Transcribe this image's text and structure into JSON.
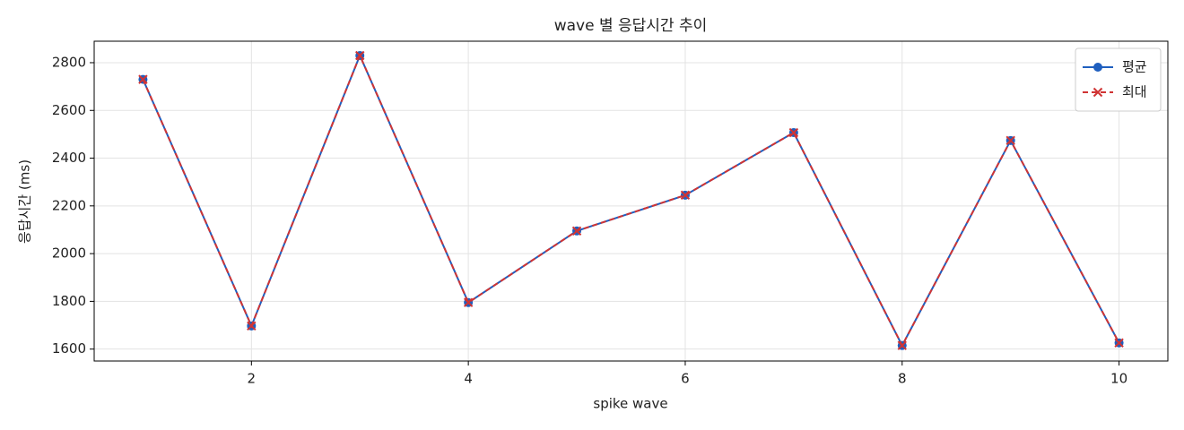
{
  "chart_data": {
    "type": "line",
    "title": "wave 별 응답시간 추이",
    "xlabel": "spike wave",
    "ylabel": "응답시간 (ms)",
    "x": [
      1,
      2,
      3,
      4,
      5,
      6,
      7,
      8,
      9,
      10
    ],
    "series": [
      {
        "name": "평균",
        "color": "#1f5fbf",
        "marker": "o",
        "linestyle": "solid",
        "values": [
          2730,
          1697,
          2830,
          1795,
          2095,
          2245,
          2507,
          1615,
          2474,
          1626
        ]
      },
      {
        "name": "최대",
        "color": "#d03434",
        "marker": "x",
        "linestyle": "dashed",
        "values": [
          2730,
          1697,
          2830,
          1795,
          2095,
          2245,
          2507,
          1615,
          2474,
          1626
        ]
      }
    ],
    "xlim": [
      0.55,
      10.45
    ],
    "ylim": [
      1550,
      2890
    ],
    "xticks": [
      2,
      4,
      6,
      8,
      10
    ],
    "yticks": [
      1600,
      1800,
      2000,
      2200,
      2400,
      2600,
      2800
    ],
    "grid": true,
    "legend": "upper right"
  }
}
